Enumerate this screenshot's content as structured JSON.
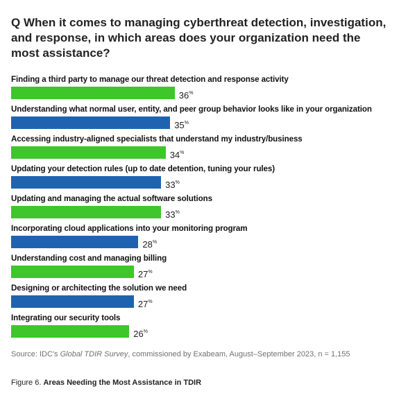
{
  "question": "Q When it comes to managing cyberthreat detection, investigation, and response, in which areas does your organization need the most assistance?",
  "chart_data": {
    "type": "bar",
    "orientation": "horizontal",
    "unit": "%",
    "xlim": [
      0,
      100
    ],
    "colors": [
      "#3ec62b",
      "#1f63b0"
    ],
    "categories": [
      "Finding a third party to manage our threat detection and response activity",
      "Understanding what normal user, entity, and peer group behavior looks like in your organization",
      "Accessing industry-aligned specialists that understand my industry/business",
      "Updating your detection rules (up to date detention, tuning your rules)",
      "Updating and managing the actual software solutions",
      "Incorporating cloud applications into your monitoring program",
      "Understanding cost and managing billing",
      "Designing or architecting the solution we need",
      "Integrating our security tools"
    ],
    "values": [
      36,
      35,
      34,
      33,
      33,
      28,
      27,
      27,
      26
    ]
  },
  "source": {
    "prefix": "Source: IDC's ",
    "survey": "Global TDIR Survey",
    "suffix": ", commissioned by Exabeam, August–September 2023, n = 1,155"
  },
  "figure": {
    "label": "Figure 6. ",
    "title": "Areas Needing the Most Assistance in TDIR"
  }
}
